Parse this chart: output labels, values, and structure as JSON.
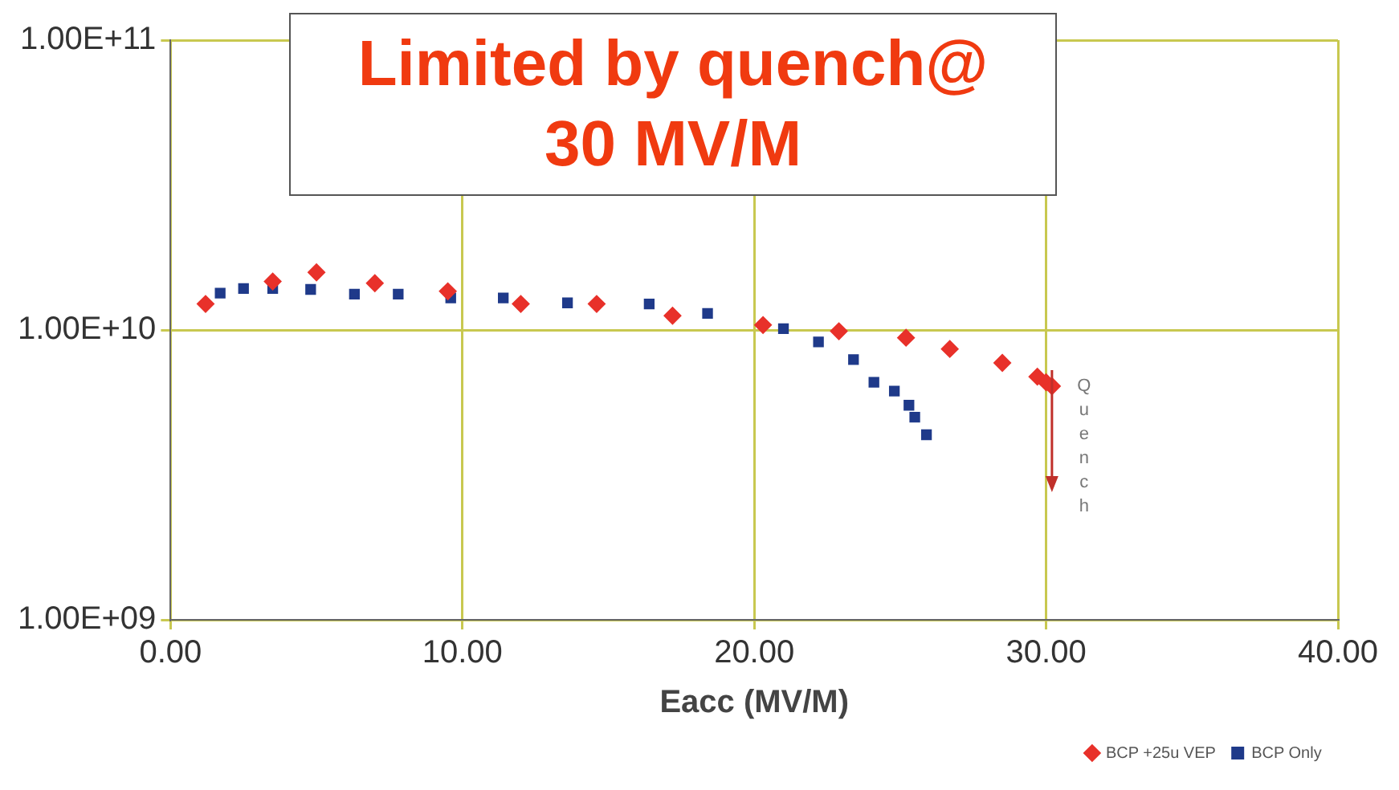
{
  "chart_data": {
    "type": "scatter",
    "title": "Limited by quench@ 30 MV/M",
    "xlabel": "Eacc (MV/M)",
    "xlim": [
      0,
      40
    ],
    "ylim": [
      1000000000.0,
      100000000000.0
    ],
    "log": "y",
    "grid": true,
    "legend": "bottom right",
    "xticks": [
      {
        "value": 0,
        "label": "0.00"
      },
      {
        "value": 10,
        "label": "10.00"
      },
      {
        "value": 20,
        "label": "20.00"
      },
      {
        "value": 30,
        "label": "30.00"
      },
      {
        "value": 40,
        "label": "40.00"
      }
    ],
    "yticks": [
      {
        "value": 1000000000.0,
        "label": "1.00E+09"
      },
      {
        "value": 10000000000.0,
        "label": "1.00E+10"
      },
      {
        "value": 100000000000.0,
        "label": "1.00E+11"
      }
    ],
    "annotations": [
      "Quench"
    ],
    "series": [
      {
        "name": "BCP +25u VEP",
        "color": "#e8312a",
        "marker": "diamond",
        "x": [
          1.2,
          3.5,
          5.0,
          7.0,
          9.5,
          12.0,
          14.6,
          17.2,
          20.3,
          22.9,
          25.2,
          26.7,
          28.5,
          29.7,
          30.0,
          30.2
        ],
        "values": [
          12300000000.0,
          14700000000.0,
          15800000000.0,
          14500000000.0,
          13600000000.0,
          12300000000.0,
          12300000000.0,
          11200000000.0,
          10400000000.0,
          9900000000.0,
          9400000000.0,
          8600000000.0,
          7700000000.0,
          6900000000.0,
          6600000000.0,
          6400000000.0
        ]
      },
      {
        "name": "BCP Only",
        "color": "#1f3a8a",
        "marker": "square",
        "x": [
          1.7,
          2.5,
          3.5,
          4.8,
          6.3,
          7.8,
          9.6,
          11.4,
          13.6,
          16.4,
          18.4,
          21.0,
          22.2,
          23.4,
          24.1,
          24.8,
          25.3,
          25.5,
          25.9
        ],
        "values": [
          13400000000.0,
          13900000000.0,
          13900000000.0,
          13800000000.0,
          13300000000.0,
          13300000000.0,
          12900000000.0,
          12900000000.0,
          12400000000.0,
          12300000000.0,
          11400000000.0,
          10100000000.0,
          9100000000.0,
          7900000000.0,
          6600000000.0,
          6150000000.0,
          5500000000.0,
          5000000000.0,
          4350000000.0
        ]
      }
    ]
  }
}
